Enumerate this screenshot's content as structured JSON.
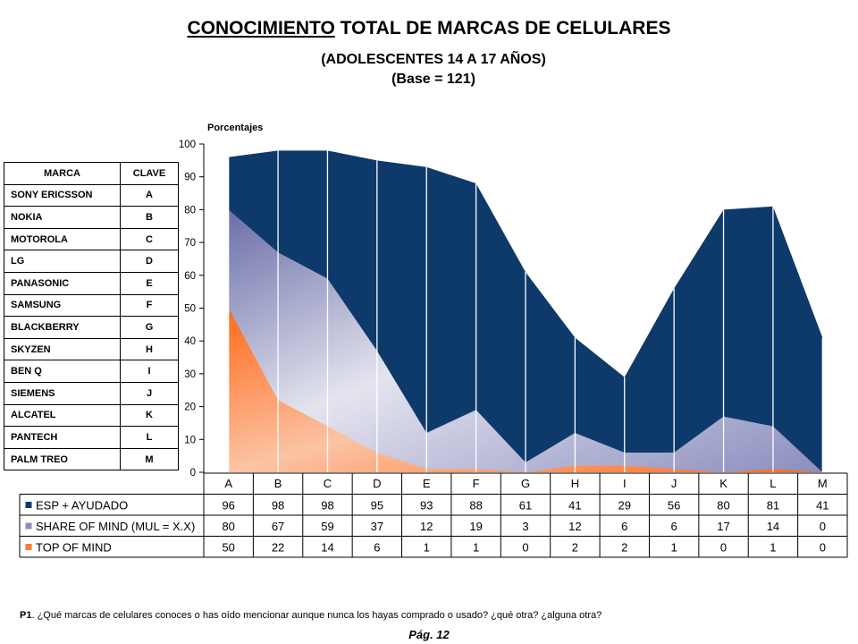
{
  "title": {
    "underlined": "CONOCIMIENTO",
    "rest": " TOTAL DE MARCAS DE CELULARES"
  },
  "subtitle": "(ADOLESCENTES 14 A 17 AÑOS)",
  "base": "(Base = 121)",
  "brand_table": {
    "headers": [
      "MARCA",
      "CLAVE"
    ],
    "rows": [
      [
        "SONY ERICSSON",
        "A"
      ],
      [
        "NOKIA",
        "B"
      ],
      [
        "MOTOROLA",
        "C"
      ],
      [
        "LG",
        "D"
      ],
      [
        "PANASONIC",
        "E"
      ],
      [
        "SAMSUNG",
        "F"
      ],
      [
        "BLACKBERRY",
        "G"
      ],
      [
        "SKYZEN",
        "H"
      ],
      [
        "BEN Q",
        "I"
      ],
      [
        "SIEMENS",
        "J"
      ],
      [
        "ALCATEL",
        "K"
      ],
      [
        "PANTECH",
        "L"
      ],
      [
        "PALM TREO",
        "M"
      ]
    ]
  },
  "chart_data": {
    "type": "area",
    "ylabel": "Porcentajes",
    "ylim": [
      0,
      100
    ],
    "yticks": [
      0,
      10,
      20,
      30,
      40,
      50,
      60,
      70,
      80,
      90,
      100
    ],
    "categories": [
      "A",
      "B",
      "C",
      "D",
      "E",
      "F",
      "G",
      "H",
      "I",
      "J",
      "K",
      "L",
      "M"
    ],
    "series": [
      {
        "name": "ESP + AYUDADO",
        "color": "#0e3a6b",
        "values": [
          96,
          98,
          98,
          95,
          93,
          88,
          61,
          41,
          29,
          56,
          80,
          81,
          41
        ]
      },
      {
        "name": "SHARE OF MIND (MUL = X.X)",
        "color": "#7b7fb2",
        "values": [
          80,
          67,
          59,
          37,
          12,
          19,
          3,
          12,
          6,
          6,
          17,
          14,
          0
        ]
      },
      {
        "name": "TOP OF MIND",
        "color": "#ff6a1a",
        "values": [
          50,
          22,
          14,
          6,
          1,
          1,
          0,
          2,
          2,
          1,
          0,
          1,
          0
        ]
      }
    ],
    "grid": false,
    "legend": "data table below chart"
  },
  "footnote": {
    "label": "P1",
    "text": ". ¿Qué marcas de celulares conoces o has oído mencionar aunque nunca los hayas comprado o usado? ¿qué otra? ¿alguna otra?"
  },
  "page_label": "Pág. 12"
}
